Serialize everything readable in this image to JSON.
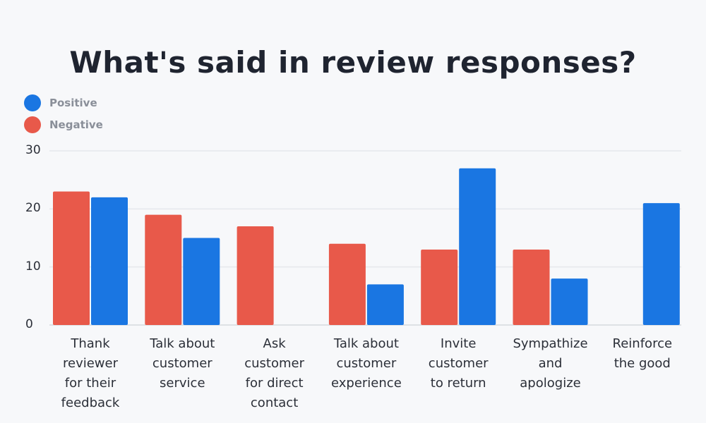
{
  "chart_data": {
    "type": "bar",
    "title": "What's said in review responses?",
    "categories": [
      [
        "Thank",
        "reviewer",
        "for their",
        "feedback"
      ],
      [
        "Talk about",
        "customer",
        "service"
      ],
      [
        "Ask",
        "customer",
        "for direct",
        "contact"
      ],
      [
        "Talk about",
        "customer",
        "experience"
      ],
      [
        "Invite",
        "customer",
        "to return"
      ],
      [
        "Sympathize",
        "and",
        "apologize"
      ],
      [
        "Reinforce",
        "the good"
      ]
    ],
    "series": [
      {
        "name": "Negative",
        "color": "#e8594a",
        "values": [
          23,
          19,
          17,
          14,
          13,
          13,
          0
        ]
      },
      {
        "name": "Positive",
        "color": "#1a76e2",
        "values": [
          22,
          15,
          0,
          7,
          27,
          8,
          21
        ]
      }
    ],
    "legend": [
      {
        "name": "Positive",
        "color": "#1a76e2"
      },
      {
        "name": "Negative",
        "color": "#e8594a"
      }
    ],
    "yticks": [
      "0",
      "10",
      "20",
      "30"
    ],
    "ylim": [
      0,
      30
    ],
    "xlabel": "",
    "ylabel": "",
    "grid": true,
    "legend_position": "top-left"
  }
}
